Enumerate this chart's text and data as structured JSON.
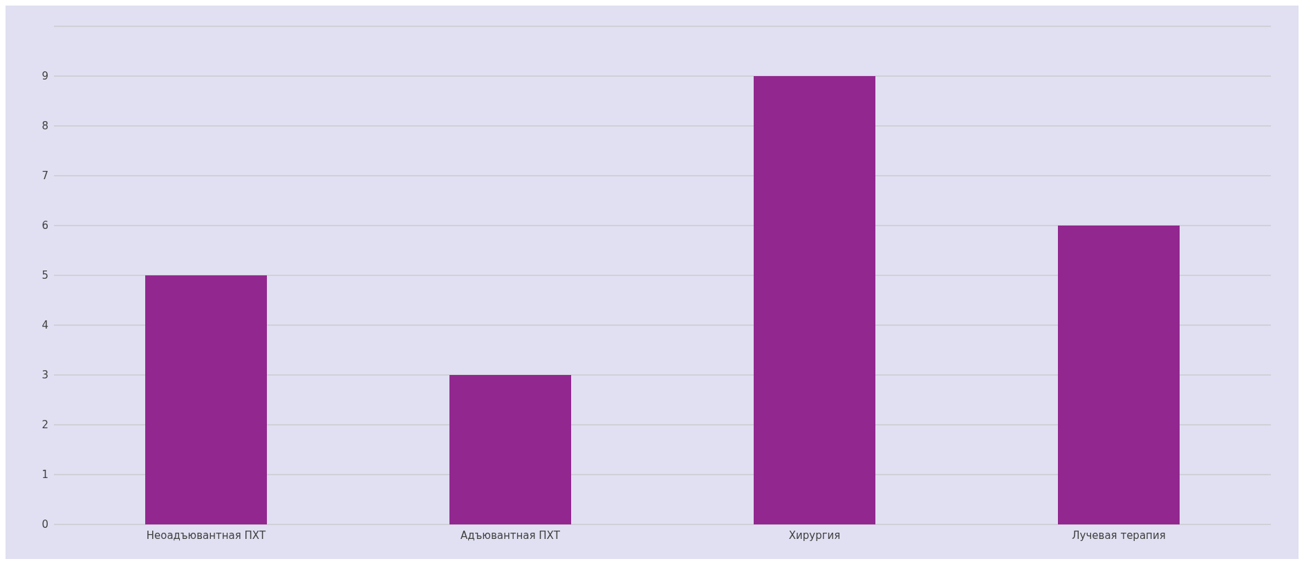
{
  "chart_data": {
    "type": "bar",
    "categories": [
      "Неоадъювантная ПХТ",
      "Адъювантная ПХТ",
      "Хирургия",
      "Лучевая терапия"
    ],
    "values": [
      5,
      3,
      9,
      6
    ],
    "color": "#92278f",
    "ylim": [
      0,
      10
    ],
    "yticks": [
      0,
      1,
      2,
      3,
      4,
      5,
      6,
      7,
      8,
      9,
      {
        "value": 10,
        "label": null
      }
    ],
    "grid": true
  }
}
